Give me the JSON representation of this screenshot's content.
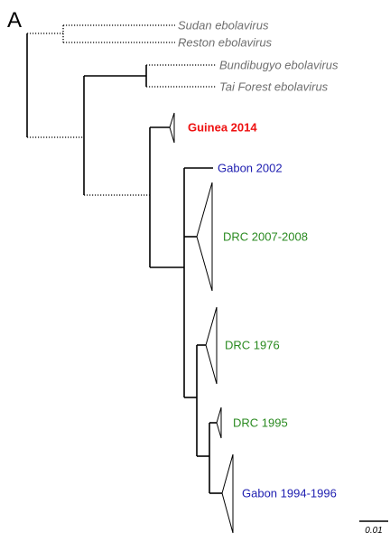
{
  "panel_label": "A",
  "tip_labels": {
    "sudan": "Sudan ebolavirus",
    "reston": "Reston ebolavirus",
    "bundibugyo": "Bundibugyo ebolavirus",
    "tai_forest": "Tai Forest ebolavirus",
    "guinea": "Guinea 2014",
    "gabon_2002": "Gabon 2002",
    "drc_2007": "DRC 2007-2008",
    "drc_1976": "DRC 1976",
    "drc_1995": "DRC 1995",
    "gabon_1994": "Gabon 1994-1996"
  },
  "scale_bar": {
    "label": "0.01"
  },
  "colors": {
    "outgroup": "#6e6e6e",
    "guinea": "#ee1111",
    "gabon": "#1d1db0",
    "drc": "#2a8a20"
  }
}
